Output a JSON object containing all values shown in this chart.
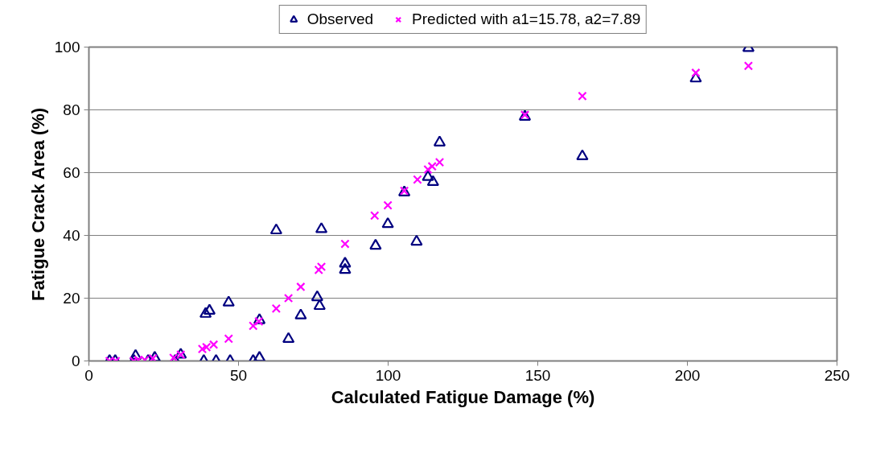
{
  "chart_data": {
    "type": "scatter",
    "xlabel": "Calculated Fatigue Damage (%)",
    "ylabel": "Fatigue Crack Area (%)",
    "xlim": [
      0,
      250
    ],
    "xticks": [
      0,
      50,
      100,
      150,
      200,
      250
    ],
    "ylim": [
      0,
      100
    ],
    "yticks": [
      0,
      20,
      40,
      60,
      80,
      100
    ],
    "grid": "y",
    "legend": "top",
    "series": [
      {
        "name": "Observed",
        "color": "#000080",
        "marker": "triangle",
        "x": [
          6.9,
          8.8,
          15.1,
          15.6,
          19.8,
          22,
          28.8,
          30.7,
          38.4,
          39,
          40.3,
          42.5,
          46.7,
          47.2,
          54.9,
          57,
          57,
          62.6,
          66.7,
          70.8,
          76.3,
          77.1,
          77.7,
          85.6,
          85.6,
          95.8,
          99.9,
          109.5,
          105.4,
          113.3,
          115,
          117.2,
          145.7,
          164.9,
          202.8,
          220.4
        ],
        "values": [
          0,
          0,
          0,
          1.6,
          0,
          1,
          0,
          2,
          0,
          15,
          16,
          0,
          18.6,
          0,
          0,
          1,
          13,
          41.6,
          7,
          14.5,
          20.3,
          17.5,
          42,
          31,
          29,
          36.7,
          43.6,
          38,
          53.7,
          58.6,
          57,
          69.6,
          77.8,
          65.2,
          90,
          99.7
        ]
      },
      {
        "name": "Predicted with a1=15.78, a2=7.89",
        "color": "#ff00ff",
        "marker": "cross",
        "x": [
          6.9,
          9,
          15,
          16.5,
          18.7,
          21.4,
          28.3,
          30.7,
          37.9,
          39.3,
          41.7,
          46.7,
          54.9,
          56.8,
          62.6,
          66.7,
          70.8,
          76.8,
          77.7,
          85.6,
          95.5,
          99.9,
          105.4,
          109.8,
          113.3,
          114.7,
          117.2,
          145.7,
          164.9,
          202.8,
          220.4
        ],
        "values": [
          0,
          0,
          0,
          0.3,
          0.3,
          0.8,
          1,
          2,
          3.8,
          4.4,
          5.2,
          7.1,
          11.2,
          12.6,
          16.7,
          20,
          23.6,
          29,
          30,
          37.3,
          46.3,
          49.6,
          54.2,
          57.8,
          61,
          62,
          63.3,
          78.4,
          84.4,
          91.8,
          94
        ]
      }
    ]
  }
}
